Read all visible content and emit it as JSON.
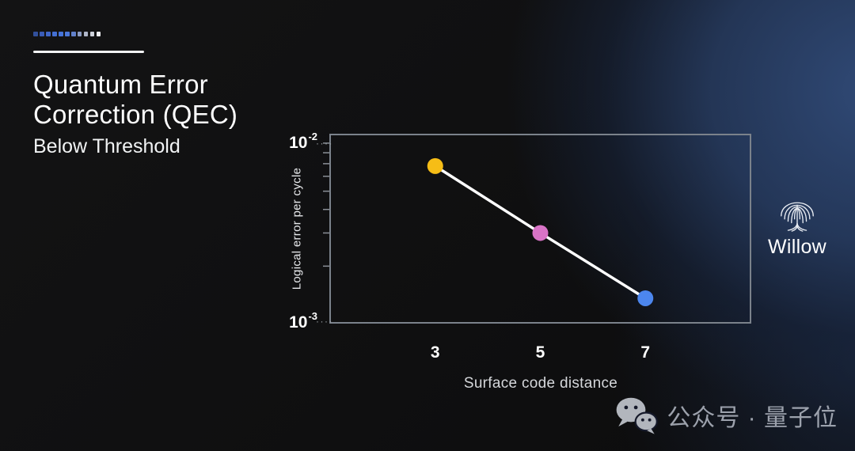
{
  "slide": {
    "title_lines": [
      "Quantum Error",
      "Correction (QEC)"
    ],
    "subtitle": "Below Threshold"
  },
  "decor": {
    "dot_colors": [
      "#32509C",
      "#3A5CB8",
      "#4066C8",
      "#4470D4",
      "#4573DA",
      "#4B77D9",
      "#6281CB",
      "#8B9AC0",
      "#AFB6C9",
      "#CFD3DC",
      "#ECEDF0"
    ],
    "rule_color": "#F3F4F6"
  },
  "logo": {
    "label": "Willow"
  },
  "watermark": {
    "text": "公众号 · 量子位"
  },
  "chart_data": {
    "type": "line",
    "title": "Quantum Error Correction (QEC) — Below Threshold",
    "xlabel": "Surface code distance",
    "ylabel": "Logical error per cycle",
    "x": [
      3,
      5,
      7
    ],
    "series": [
      {
        "name": "Logical error per cycle",
        "values": [
          0.0068,
          0.003,
          0.00135
        ]
      }
    ],
    "point_colors": [
      "#F6BD16",
      "#D873C6",
      "#4C86EE"
    ],
    "line_color": "#FFFFFF",
    "yscale": "log",
    "ylim": [
      0.001,
      0.01
    ],
    "y_ticks": [
      {
        "base": "10",
        "exp": "-2",
        "value": 0.01
      },
      {
        "base": "10",
        "exp": "-3",
        "value": 0.001
      }
    ],
    "tick_leader": "····",
    "minor_ticks": [
      0.009,
      0.008,
      0.007,
      0.006,
      0.005,
      0.004,
      0.003,
      0.002
    ],
    "grid": false,
    "legend": false
  }
}
